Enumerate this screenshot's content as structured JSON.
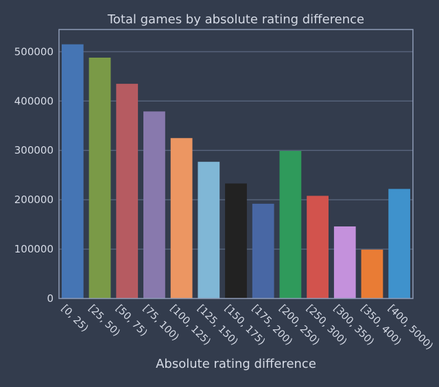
{
  "chart_data": {
    "type": "bar",
    "title": "Total games by absolute rating difference",
    "xlabel": "Absolute rating difference",
    "ylabel": "",
    "categories": [
      "[0, 25)",
      "[25, 50)",
      "[50, 75)",
      "[75, 100)",
      "[100, 125)",
      "[125, 150)",
      "[150, 175)",
      "[175, 200)",
      "[200, 250)",
      "[250, 300)",
      "[300, 350)",
      "[350, 400)",
      "[400, 5000)"
    ],
    "values": [
      515000,
      488000,
      435000,
      379000,
      325000,
      277000,
      233000,
      192000,
      299000,
      208000,
      146000,
      99000,
      222000
    ],
    "colors": [
      "#4575b4",
      "#7a9a47",
      "#b65b61",
      "#8879ad",
      "#ec9662",
      "#80b7d6",
      "#222222",
      "#4867a4",
      "#2f9a5b",
      "#d2534d",
      "#c491dc",
      "#e97c35",
      "#3f92cc"
    ],
    "yticks": [
      0,
      100000,
      200000,
      300000,
      400000,
      500000
    ],
    "ylim": [
      0,
      545000
    ],
    "grid": true,
    "theme": {
      "background": "#333c4d",
      "grid_color": "#56627a",
      "spine_color": "#8e9bb7",
      "text_color": "#d6dbe6"
    }
  }
}
